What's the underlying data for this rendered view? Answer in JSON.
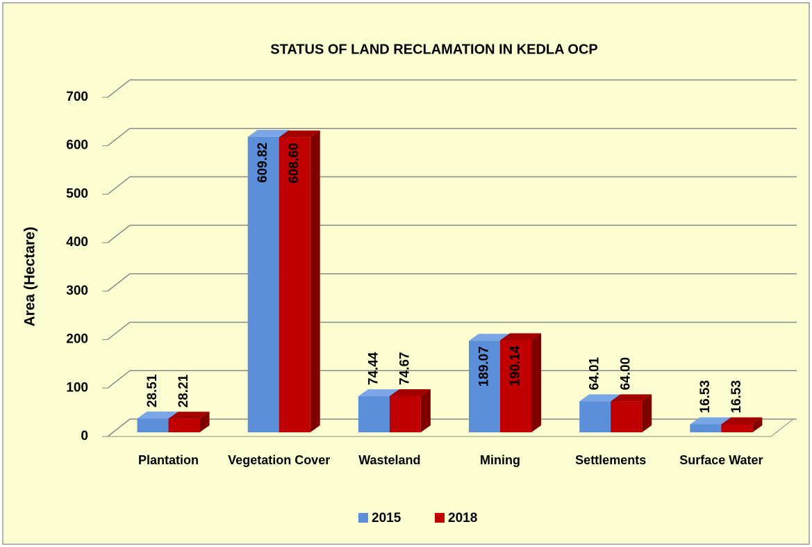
{
  "chart_data": {
    "type": "bar3d",
    "title": "STATUS OF  LAND RECLAMATION IN KEDLA OCP",
    "y_label": "Area (Hectare)",
    "categories": [
      "Plantation",
      "Vegetation Cover",
      "Wasteland",
      "Mining",
      "Settlements",
      "Surface Water"
    ],
    "series": [
      {
        "name": "2015",
        "color": "#5b8fd9",
        "values": [
          28.51,
          609.82,
          74.44,
          189.07,
          64.01,
          16.53
        ],
        "value_labels": [
          "28.51",
          "609.82",
          "74.44",
          "189.07",
          "64.01",
          "16.53"
        ]
      },
      {
        "name": "2018",
        "color": "#c00000",
        "values": [
          28.21,
          608.6,
          74.67,
          190.14,
          64.0,
          16.53
        ],
        "value_labels": [
          "28.21",
          "608.60",
          "74.67",
          "190.14",
          "64.00",
          "16.53"
        ]
      }
    ],
    "ylim": [
      0,
      700
    ],
    "yticks": [
      0,
      100,
      200,
      300,
      400,
      500,
      600,
      700
    ],
    "grid": true,
    "legend": "bottom"
  }
}
